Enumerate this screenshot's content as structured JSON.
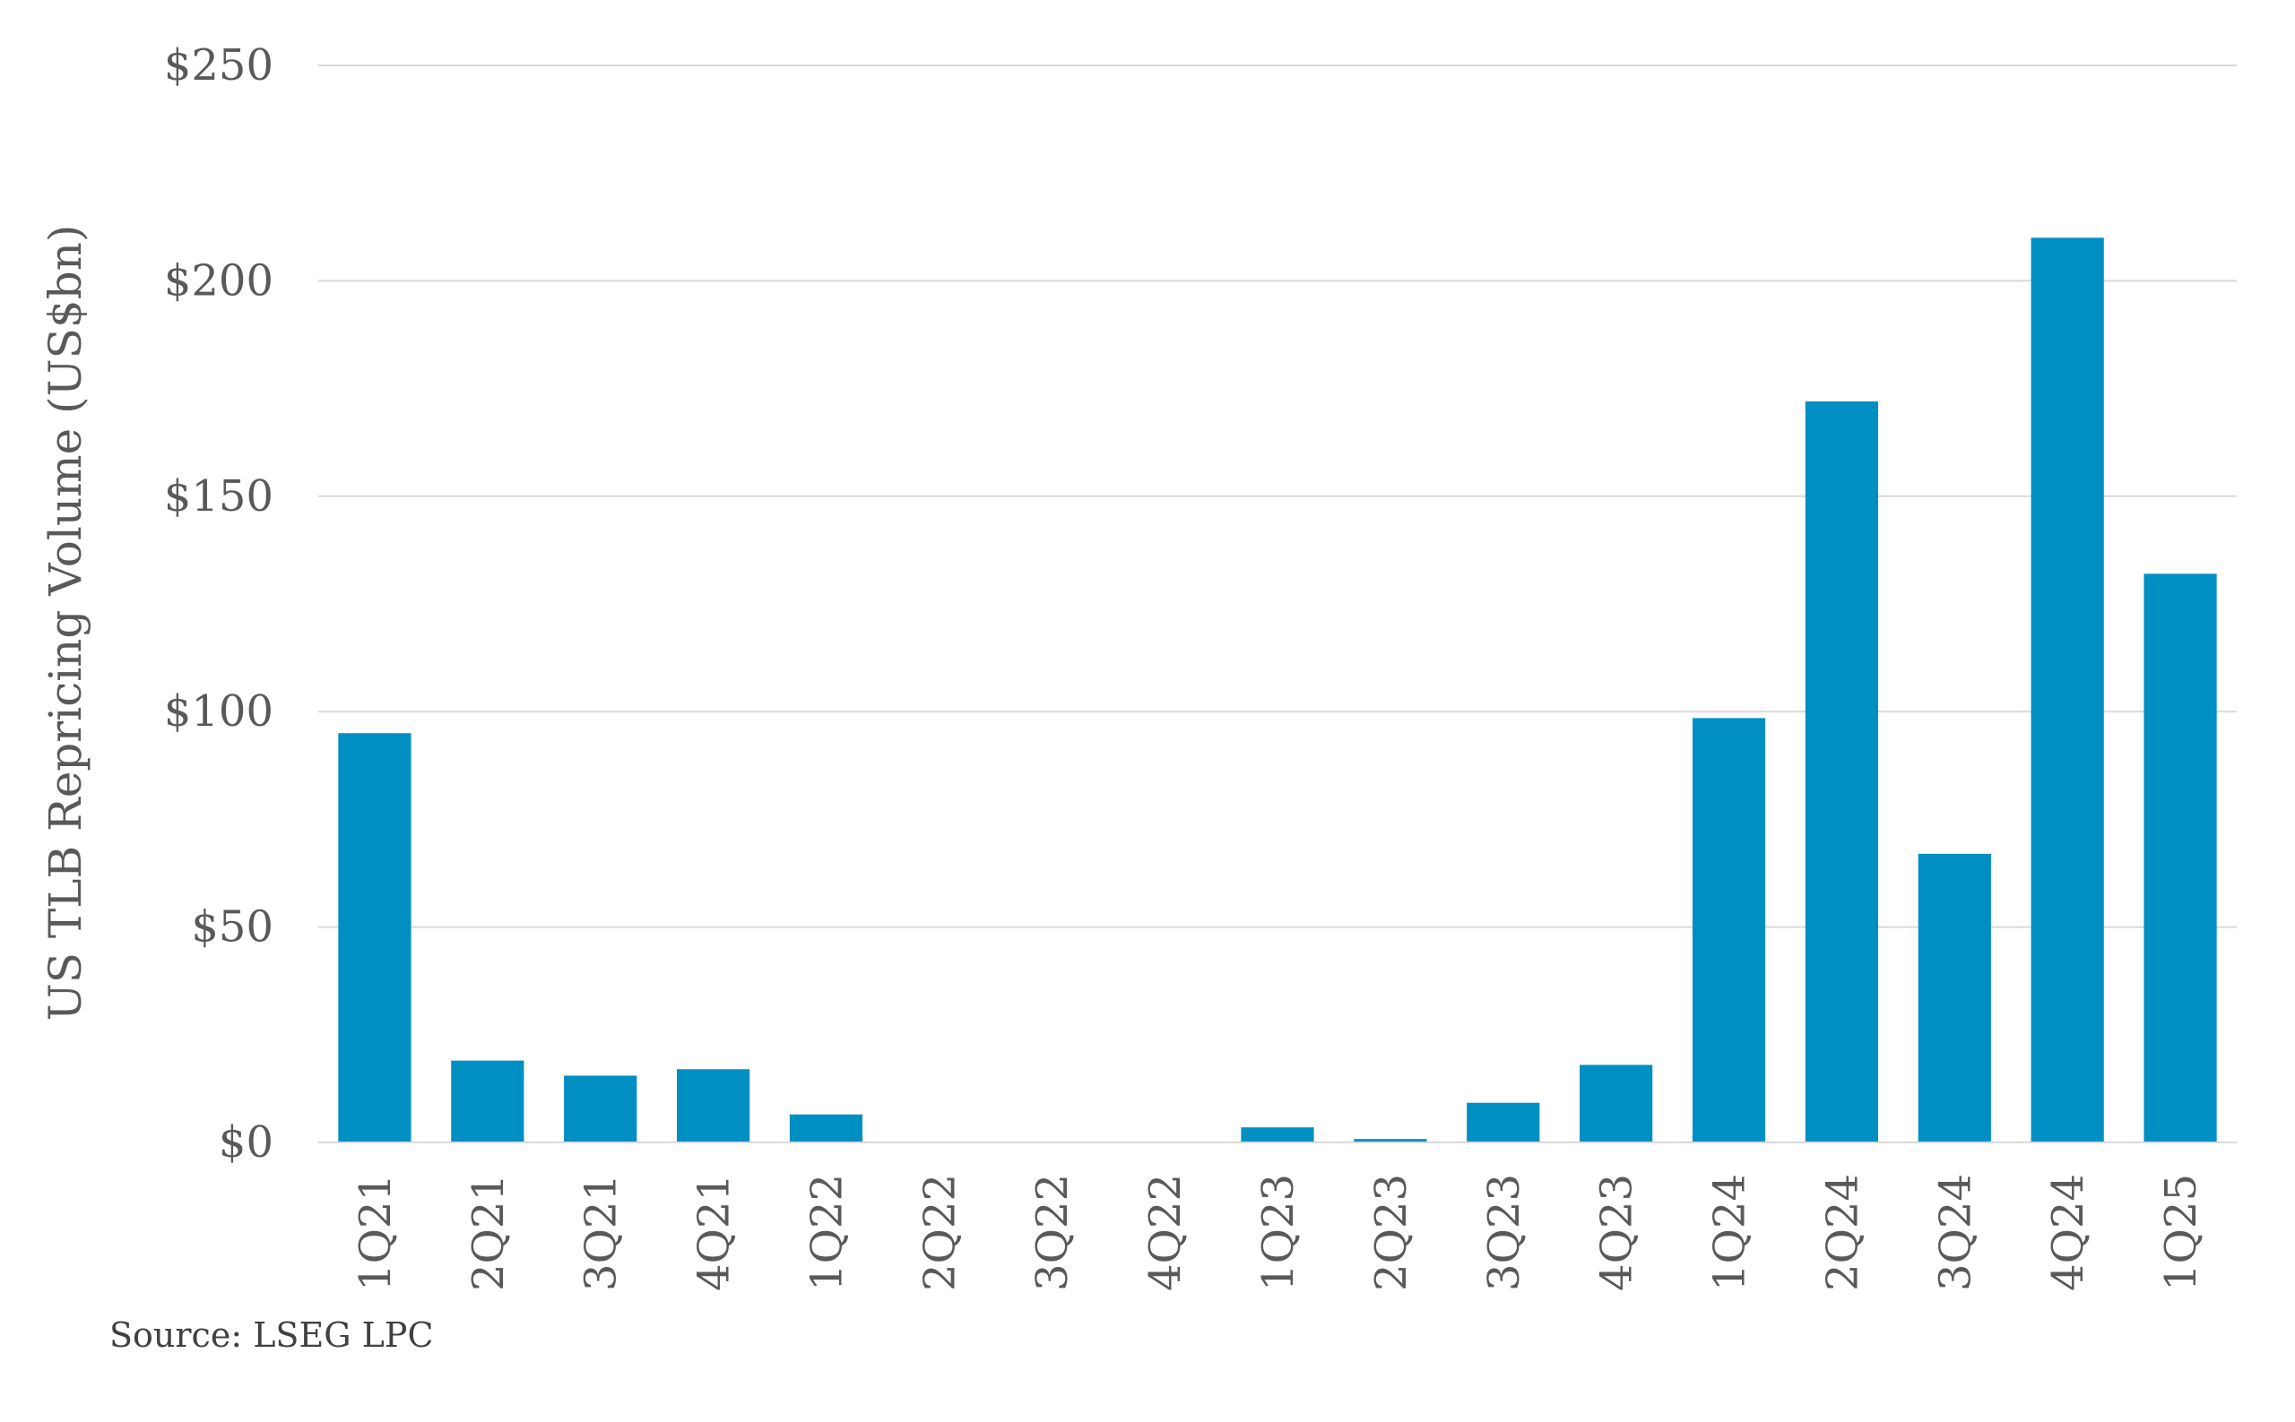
{
  "chart_data": {
    "type": "bar",
    "title": "",
    "ylabel": "US TLB Repricing Volume (US$bn)",
    "xlabel": "",
    "categories": [
      "1Q21",
      "2Q21",
      "3Q21",
      "4Q21",
      "1Q22",
      "2Q22",
      "3Q22",
      "4Q22",
      "1Q23",
      "2Q23",
      "3Q23",
      "4Q23",
      "1Q24",
      "2Q24",
      "3Q24",
      "4Q24",
      "1Q25"
    ],
    "values": [
      95,
      19,
      15.5,
      17,
      6.5,
      0,
      0,
      0,
      3.5,
      0.8,
      9.2,
      18,
      98.5,
      172,
      67,
      210,
      132
    ],
    "ylim": [
      0,
      250
    ],
    "yticks": [
      0,
      50,
      100,
      150,
      200,
      250
    ],
    "ytick_labels": [
      "$0",
      "$50",
      "$100",
      "$150",
      "$200",
      "$250"
    ],
    "grid": true,
    "legend": "none",
    "bar_color": "#008fc3"
  },
  "source_note": "Source: LSEG LPC"
}
